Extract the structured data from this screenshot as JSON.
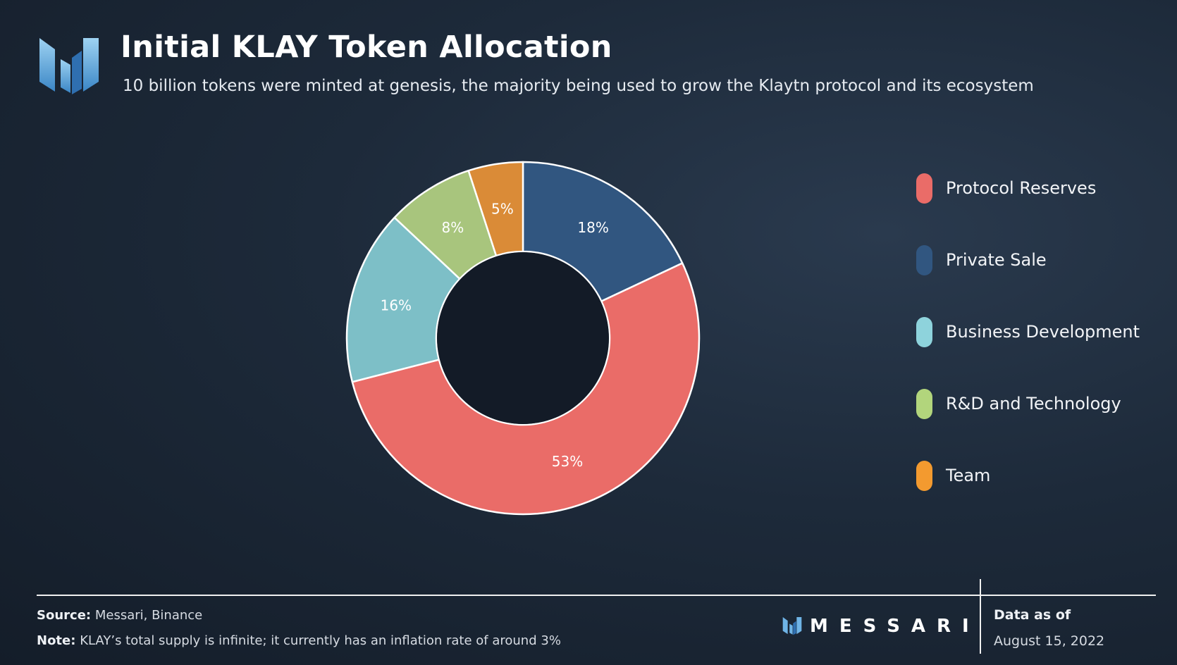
{
  "header": {
    "title": "Initial KLAY Token Allocation",
    "subtitle": "10 billion tokens were minted at genesis, the majority being used to grow the Klaytn protocol and its ecosystem"
  },
  "chart_data": {
    "type": "pie",
    "donut": true,
    "legend_position": "right",
    "start_angle_deg": 0,
    "direction": "clockwise",
    "slices": [
      {
        "name": "Private Sale",
        "value": 18,
        "label": "18%",
        "color": "#315680"
      },
      {
        "name": "Protocol Reserves",
        "value": 53,
        "label": "53%",
        "color": "#ea6c68"
      },
      {
        "name": "Business Development",
        "value": 16,
        "label": "16%",
        "color": "#7dbfc7"
      },
      {
        "name": "R&D and Technology",
        "value": 8,
        "label": "8%",
        "color": "#a8c57d"
      },
      {
        "name": "Team",
        "value": 5,
        "label": "5%",
        "color": "#da8b37"
      }
    ]
  },
  "legend": {
    "items": [
      {
        "label": "Protocol Reserves",
        "color": "#ea6c68"
      },
      {
        "label": "Private Sale",
        "color": "#315680"
      },
      {
        "label": "Business Development",
        "color": "#8ed3dc"
      },
      {
        "label": "R&D and Technology",
        "color": "#b2d57c"
      },
      {
        "label": "Team",
        "color": "#f39a2f"
      }
    ]
  },
  "footer": {
    "source_label": "Source:",
    "source_text": "Messari, Binance",
    "note_label": "Note:",
    "note_text": "KLAY’s total supply is infinite; it currently has an inflation rate of around 3%",
    "brand": "MESSARI",
    "data_as_of_label": "Data as of",
    "data_as_of_date": "August 15, 2022"
  },
  "icons": {
    "logo": "messari-logo-icon",
    "brand_mark": "messari-mark-icon"
  }
}
